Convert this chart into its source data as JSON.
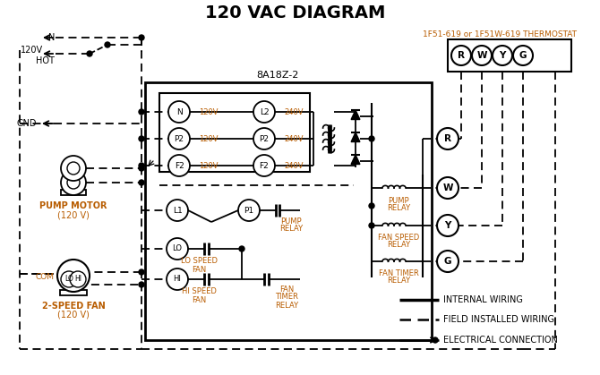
{
  "title": "120 VAC DIAGRAM",
  "title_fontsize": 14,
  "title_fontweight": "bold",
  "bg_color": "#ffffff",
  "text_color": "#000000",
  "orange_color": "#b85c00",
  "line_color": "#000000",
  "thermostat_label": "1F51-619 or 1F51W-619 THERMOSTAT",
  "module_label": "8A18Z-2",
  "terminal_labels": [
    "R",
    "W",
    "Y",
    "G"
  ],
  "input_terminals_left": [
    "N",
    "P2",
    "F2"
  ],
  "input_voltages_left": [
    "120V",
    "120V",
    "120V"
  ],
  "input_terminals_right": [
    "L2",
    "P2",
    "F2"
  ],
  "input_voltages_right": [
    "240V",
    "240V",
    "240V"
  ],
  "pump_motor_label1": "PUMP MOTOR",
  "pump_motor_label2": "(120 V)",
  "fan_label1": "2-SPEED FAN",
  "fan_label2": "(120 V)",
  "legend_solid": "INTERNAL WIRING",
  "legend_dashed": "FIELD INSTALLED WIRING",
  "legend_dot": "ELECTRICAL CONNECTION"
}
